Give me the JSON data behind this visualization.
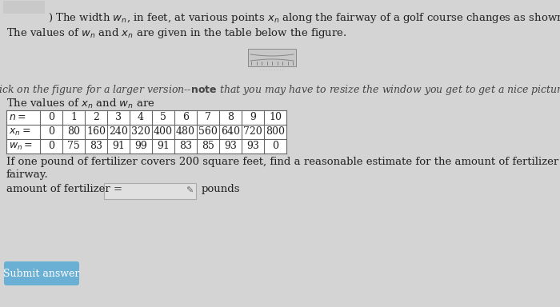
{
  "background_color": "#d4d4d4",
  "text_color": "#222222",
  "line1": ") The width $w_n$, in feet, at various points $x_n$ along the fairway of a golf course changes as shown in the figure below.",
  "line2": "The values of $w_n$ and $x_n$ are given in the table below the figure.",
  "click_line": "(Click on the figure for a larger version--$\\mathbf{note}$ that you may have to resize the window you get to get a nice picture.)",
  "table_header": "The values of $x_n$ and $w_n$ are",
  "n_label": "$n =$",
  "x_label": "$x_n =$",
  "w_label": "$w_n =$",
  "n_values": [
    "0",
    "1",
    "2",
    "3",
    "4",
    "5",
    "6",
    "7",
    "8",
    "9",
    "10"
  ],
  "x_values": [
    "0",
    "80",
    "160",
    "240",
    "320",
    "400",
    "480",
    "560",
    "640",
    "720",
    "800"
  ],
  "w_values": [
    "0",
    "75",
    "83",
    "91",
    "99",
    "91",
    "83",
    "85",
    "93",
    "93",
    "0"
  ],
  "fert_line1": "If one pound of fertilizer covers 200 square feet, find a reasonable estimate for the amount of fertilizer needed to fertilize the",
  "fert_line2": "fairway.",
  "amount_label": "amount of fertilizer =",
  "pounds_label": "pounds",
  "submit_label": "Submit answer",
  "submit_color": "#6aafd4",
  "table_border": "#666666",
  "font_size": 9.5,
  "font_size_small": 9.0,
  "font_size_table": 9.0
}
